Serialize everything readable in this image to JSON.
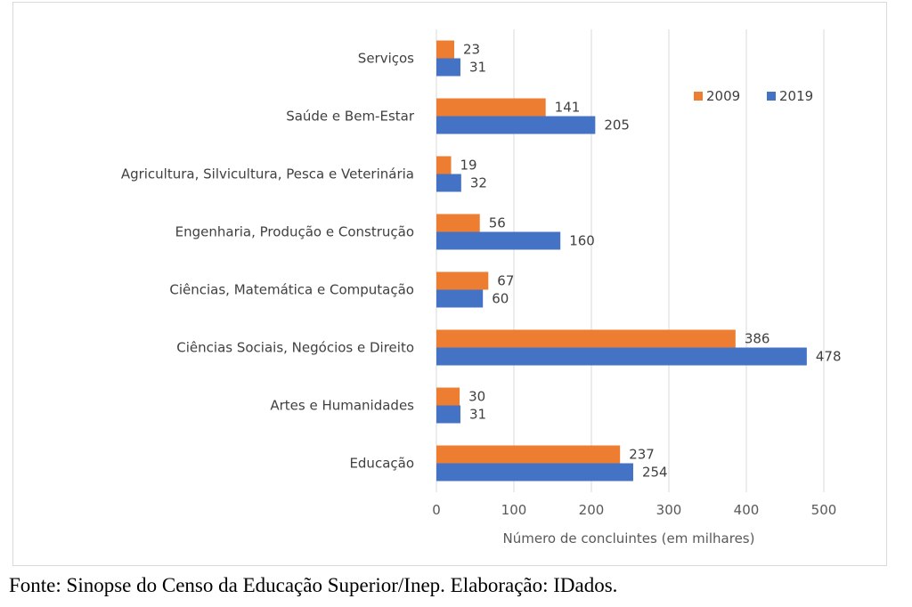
{
  "chart_data": {
    "type": "bar",
    "orientation": "horizontal",
    "categories": [
      "Serviços",
      "Saúde e Bem-Estar",
      "Agricultura, Silvicultura, Pesca e Veterinária",
      "Engenharia, Produção e Construção",
      "Ciências, Matemática e Computação",
      "Ciências Sociais, Negócios e Direito",
      "Artes e Humanidades",
      "Educação"
    ],
    "series": [
      {
        "name": "2009",
        "color": "#ed7d31",
        "values": [
          23,
          141,
          19,
          56,
          67,
          386,
          30,
          237
        ]
      },
      {
        "name": "2019",
        "color": "#4472c4",
        "values": [
          31,
          205,
          32,
          160,
          60,
          478,
          31,
          254
        ]
      }
    ],
    "xlabel": "Número de concluintes (em milhares)",
    "ylabel": "",
    "xlim": [
      0,
      500
    ],
    "xticks": [
      0,
      100,
      200,
      300,
      400,
      500
    ],
    "grid": "vertical",
    "legend_position": "top-right",
    "data_labels": true
  },
  "source": "Fonte: Sinopse do Censo da Educação Superior/Inep. Elaboração: IDados."
}
